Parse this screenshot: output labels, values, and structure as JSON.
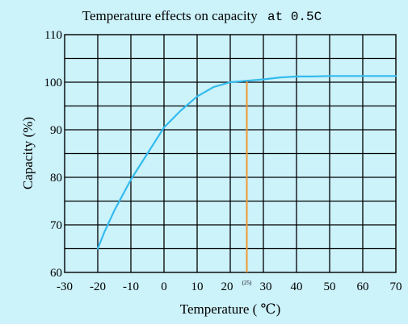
{
  "chart_data": {
    "type": "line",
    "title": "Temperature effects on capacity",
    "title_suffix": "at  0.5C",
    "xlabel": "Temperature ( ℃)",
    "ylabel": "Capacity (%)",
    "xlim": [
      -30,
      70
    ],
    "ylim": [
      60,
      110
    ],
    "x_ticks": [
      "-30",
      "-20",
      "-10",
      "0",
      "10",
      "20",
      "30",
      "40",
      "50",
      "60",
      "70"
    ],
    "y_ticks": [
      "60",
      "70",
      "80",
      "90",
      "100",
      "110"
    ],
    "x_tick_values": [
      -30,
      -20,
      -10,
      0,
      10,
      20,
      30,
      40,
      50,
      60,
      70
    ],
    "y_tick_values": [
      60,
      70,
      80,
      90,
      100,
      110
    ],
    "grid": true,
    "series": [
      {
        "color": "#33bbee",
        "x": [
          -20,
          -18,
          -15,
          -10,
          -5,
          0,
          5,
          10,
          15,
          20,
          25,
          30,
          35,
          40,
          45,
          50,
          60,
          70
        ],
        "y": [
          65,
          68.5,
          73,
          79.5,
          85,
          90.5,
          94,
          97,
          99,
          100,
          100.3,
          100.6,
          101,
          101.2,
          101.2,
          101.3,
          101.3,
          101.3
        ]
      }
    ],
    "marker": {
      "x": 25,
      "y": 100.3,
      "label": "(25)",
      "color": "#ee9933"
    }
  }
}
